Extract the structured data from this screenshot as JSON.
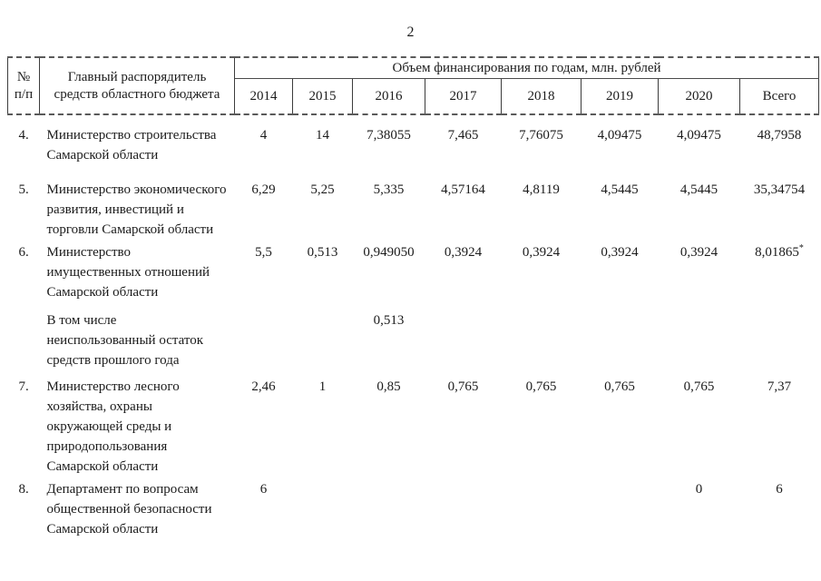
{
  "page_number": "2",
  "table": {
    "header": {
      "num_col": "№\nп/п",
      "name_col": "Главный распорядитель\nсредств областного бюджета",
      "group_col": "Объем финансирования по годам, млн. рублей",
      "years": [
        "2014",
        "2015",
        "2016",
        "2017",
        "2018",
        "2019",
        "2020",
        "Всего"
      ]
    },
    "rows": [
      {
        "num": "4.",
        "name": "Министерство строительства\nСамарской области",
        "values": [
          "4",
          "14",
          "7,38055",
          "7,465",
          "7,76075",
          "4,09475",
          "4,09475",
          "48,7958"
        ]
      },
      {
        "num": "5.",
        "name": "Министерство экономического\nразвития, инвестиций и\nторговли Самарской области",
        "values": [
          "6,29",
          "5,25",
          "5,335",
          "4,57164",
          "4,8119",
          "4,5445",
          "4,5445",
          "35,34754"
        ]
      },
      {
        "num": "6.",
        "name": "Министерство\nимущественных отношений\nСамарской области",
        "values": [
          "5,5",
          "0,513",
          "0,949050",
          "0,3924",
          "0,3924",
          "0,3924",
          "0,3924",
          "8,01865"
        ],
        "sups": {
          "7": "*"
        }
      },
      {
        "num": "",
        "name": "В том числе\nнеиспользованный остаток\nсредств прошлого года",
        "values": [
          "",
          "",
          "0,513",
          "",
          "",
          "",
          "",
          ""
        ]
      },
      {
        "num": "7.",
        "name": "Министерство лесного\nхозяйства, охраны\nокружающей среды и\nприродопользования\nСамарской области",
        "values": [
          "2,46",
          "1",
          "0,85",
          "0,765",
          "0,765",
          "0,765",
          "0,765",
          "7,37"
        ]
      },
      {
        "num": "8.",
        "name": "Департамент по вопросам\nобщественной безопасности\nСамарской области",
        "values": [
          "6",
          "",
          "",
          "",
          "",
          "",
          "0",
          "6"
        ]
      }
    ]
  }
}
